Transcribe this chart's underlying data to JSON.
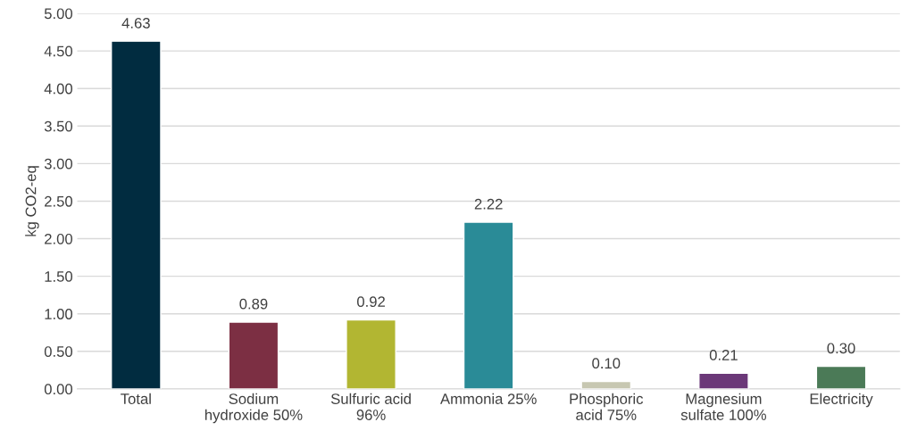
{
  "chart_data": {
    "type": "bar",
    "ylabel": "kg CO2-eq",
    "categories": [
      "Total",
      "Sodium\nhydroxide 50%",
      "Sulfuric acid\n96%",
      "Ammonia 25%",
      "Phosphoric\nacid 75%",
      "Magnesium\nsulfate 100%",
      "Electricity"
    ],
    "values": [
      4.63,
      0.89,
      0.92,
      2.22,
      0.1,
      0.21,
      0.3
    ],
    "colors": [
      "#012c40",
      "#7c2f43",
      "#b2b632",
      "#2a8b97",
      "#c7c7b1",
      "#6b3878",
      "#4b7a57"
    ],
    "value_labels": [
      "4.63",
      "0.89",
      "0.92",
      "2.22",
      "0.10",
      "0.21",
      "0.30"
    ],
    "ylim": [
      0,
      5
    ],
    "yticks": [
      {
        "value": 0,
        "label": "0.00"
      },
      {
        "value": 0.5,
        "label": "0.50"
      },
      {
        "value": 1,
        "label": "1.00"
      },
      {
        "value": 1.5,
        "label": "1.50"
      },
      {
        "value": 2,
        "label": "2.00"
      },
      {
        "value": 2.5,
        "label": "2.50"
      },
      {
        "value": 3,
        "label": "3.00"
      },
      {
        "value": 3.5,
        "label": "3.50"
      },
      {
        "value": 4,
        "label": "4.00"
      },
      {
        "value": 4.5,
        "label": "4.50"
      },
      {
        "value": 5,
        "label": "5.00"
      }
    ],
    "grid": "y",
    "legend": false
  }
}
